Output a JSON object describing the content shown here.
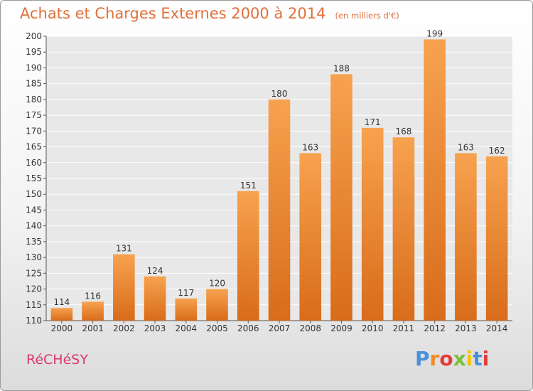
{
  "chart_data": {
    "type": "bar",
    "title": "Achats et Charges Externes 2000 à 2014",
    "unit_label": "(en milliers d'€)",
    "categories": [
      "2000",
      "2001",
      "2002",
      "2003",
      "2004",
      "2005",
      "2006",
      "2007",
      "2008",
      "2009",
      "2010",
      "2011",
      "2012",
      "2013",
      "2014"
    ],
    "values": [
      114,
      116,
      131,
      124,
      117,
      120,
      151,
      180,
      163,
      188,
      171,
      168,
      199,
      163,
      162
    ],
    "data_labels": [
      "114",
      "116",
      "131",
      "124",
      "117",
      "120",
      "151",
      "180",
      "163",
      "188",
      "171",
      "168",
      "199",
      "163",
      "162"
    ],
    "ylim": [
      110,
      200
    ],
    "yticks": [
      "110",
      "115",
      "120",
      "125",
      "130",
      "135",
      "140",
      "145",
      "150",
      "155",
      "160",
      "165",
      "170",
      "175",
      "180",
      "185",
      "190",
      "195",
      "200"
    ],
    "grid": true,
    "bar_color": "#f08d3a",
    "xlabel": "",
    "ylabel": ""
  },
  "footer": {
    "commune": "RéCHéSY",
    "brand": "Proxiti"
  },
  "colors": {
    "title": "#e0703a",
    "commune": "#d93a6a",
    "brand_letters": [
      "#4a90d9",
      "#f28c28",
      "#e23b3b",
      "#7cbf3a",
      "#f4c400",
      "#4a90d9",
      "#e23b3b"
    ]
  }
}
